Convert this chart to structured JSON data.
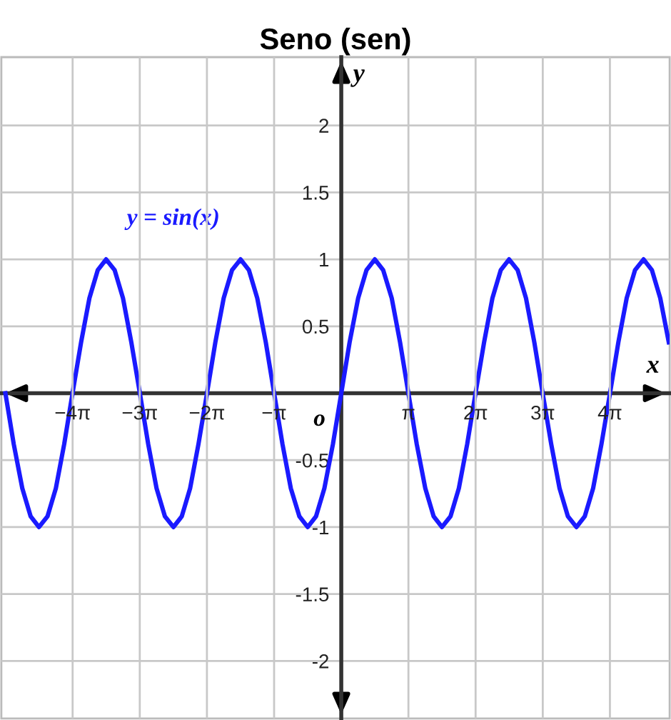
{
  "chart_data": {
    "type": "line",
    "title": "Seno (sen)",
    "xlabel": "x",
    "ylabel": "y",
    "annotations": [
      "o"
    ],
    "x": [
      -15.71,
      -15.32,
      -14.92,
      -14.53,
      -14.14,
      -13.74,
      -13.35,
      -12.96,
      -12.57,
      -12.17,
      -11.78,
      -11.39,
      -11.0,
      -10.6,
      -10.21,
      -9.82,
      -9.42,
      -9.03,
      -8.64,
      -8.25,
      -7.85,
      -7.46,
      -7.07,
      -6.68,
      -6.28,
      -5.89,
      -5.5,
      -5.11,
      -4.71,
      -4.32,
      -3.93,
      -3.53,
      -3.14,
      -2.75,
      -2.36,
      -1.96,
      -1.57,
      -1.18,
      -0.79,
      -0.39,
      0,
      0.39,
      0.79,
      1.18,
      1.57,
      1.96,
      2.36,
      2.75,
      3.14,
      3.53,
      3.93,
      4.32,
      4.71,
      5.11,
      5.5,
      5.89,
      6.28,
      6.68,
      7.07,
      7.46,
      7.85,
      8.25,
      8.64,
      9.03,
      9.42,
      9.82,
      10.21,
      10.6,
      11.0,
      11.39,
      11.78,
      12.17,
      12.57,
      12.96,
      13.35,
      13.74,
      14.14,
      14.53,
      14.92,
      15.32
    ],
    "series": [
      {
        "name": "y = sin(x)",
        "color": "#1a1aff",
        "values": [
          0,
          -0.38,
          -0.71,
          -0.92,
          -1,
          -0.92,
          -0.71,
          -0.38,
          0,
          0.38,
          0.71,
          0.92,
          1,
          0.92,
          0.71,
          0.38,
          0,
          -0.38,
          -0.71,
          -0.92,
          -1,
          -0.92,
          -0.71,
          -0.38,
          0,
          0.38,
          0.71,
          0.92,
          1,
          0.92,
          0.71,
          0.38,
          0,
          -0.38,
          -0.71,
          -0.92,
          -1,
          -0.92,
          -0.71,
          -0.38,
          0,
          0.38,
          0.71,
          0.92,
          1,
          0.92,
          0.71,
          0.38,
          0,
          -0.38,
          -0.71,
          -0.92,
          -1,
          -0.92,
          -0.71,
          -0.38,
          0,
          0.38,
          0.71,
          0.92,
          1,
          0.92,
          0.71,
          0.38,
          0,
          -0.38,
          -0.71,
          -0.92,
          -1,
          -0.92,
          -0.71,
          -0.38,
          0,
          0.38,
          0.71,
          0.92,
          1,
          0.92,
          0.71,
          0.38
        ]
      }
    ],
    "xlim": [
      -15.9,
      15.36
    ],
    "ylim": [
      -2.43,
      2.51
    ],
    "xticks": [
      {
        "value": -12.566,
        "label": "−4π"
      },
      {
        "value": -9.425,
        "label": "−3π"
      },
      {
        "value": -6.283,
        "label": "−2π"
      },
      {
        "value": -3.1416,
        "label": "−π"
      },
      {
        "value": 3.1416,
        "label": "π"
      },
      {
        "value": 6.283,
        "label": "2π"
      },
      {
        "value": 9.425,
        "label": "3π"
      },
      {
        "value": 12.566,
        "label": "4π"
      }
    ],
    "yticks": [
      {
        "value": -2,
        "label": "-2"
      },
      {
        "value": -1.5,
        "label": "-1.5"
      },
      {
        "value": -1,
        "label": "-1"
      },
      {
        "value": -0.5,
        "label": "-0.5"
      },
      0.5,
      1,
      1.5,
      2
    ],
    "grid": true,
    "legend": false,
    "marker": "none",
    "line_style": "solid"
  }
}
